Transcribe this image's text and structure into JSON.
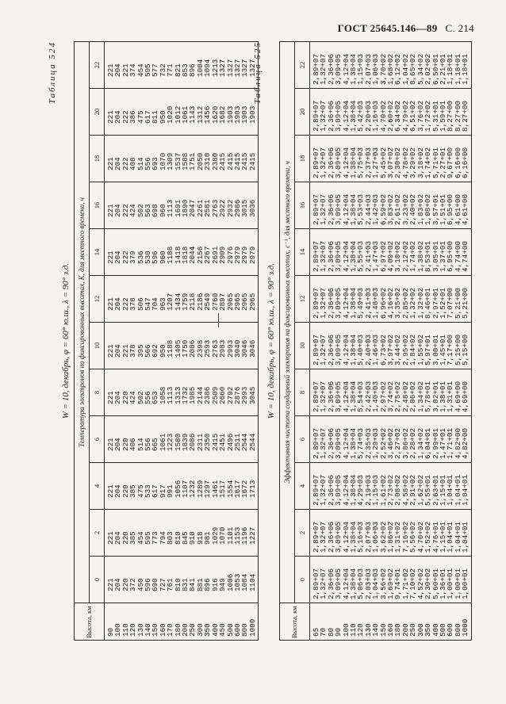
{
  "page_header": {
    "standard": "ГОСТ 25645.146—89",
    "page": "С. 214"
  },
  "table524": {
    "label": "Таблица 524",
    "subtitle": "W = 10, декабрь, φ = 60° ю.ш., λ = 90° з.д.",
    "span_header": "Температура электронов на фиксированных высотах, К, для местного времени, ч",
    "alt_header": "Высота, км",
    "hours": [
      "0",
      "2",
      "4",
      "6",
      "8",
      "10",
      "12",
      "14",
      "16",
      "18",
      "20",
      "22"
    ],
    "altitudes": [
      "90",
      "100",
      "110",
      "120",
      "130",
      "140",
      "150",
      "160",
      "170",
      "180",
      "200",
      "250",
      "300",
      "350",
      "400",
      "450",
      "500",
      "600",
      "800",
      "1000"
    ],
    "columns": [
      [
        "221",
        "204",
        "220",
        "372",
        "450",
        "596",
        "690",
        "727",
        "761",
        "810",
        "831",
        "841",
        "881",
        "896",
        "916",
        "949",
        "1006",
        "1053",
        "1084",
        "1104"
      ],
      [
        "221",
        "204",
        "220",
        "385",
        "454",
        "595",
        "773",
        "794",
        "803",
        "810",
        "845",
        "910",
        "918",
        "981",
        "1029",
        "1070",
        "1101",
        "1153",
        "1196",
        "1227"
      ],
      [
        "221",
        "204",
        "220",
        "385",
        "475",
        "533",
        "617",
        "917",
        "991",
        "1056",
        "1107",
        "1232",
        "1289",
        "1297",
        "1461",
        "1517",
        "1554",
        "1617",
        "1672",
        "1713"
      ],
      [
        "221",
        "204",
        "220",
        "406",
        "514",
        "556",
        "665",
        "1061",
        "1223",
        "1580",
        "1839",
        "2086",
        "2311",
        "2350",
        "2415",
        "2451",
        "2496",
        "2511",
        "2544",
        "2544"
      ],
      [
        "221",
        "204",
        "220",
        "424",
        "502",
        "556",
        "653",
        "1058",
        "1113",
        "1313",
        "1732",
        "1985",
        "2144",
        "2386",
        "2509",
        "2660",
        "2792",
        "2876",
        "2993",
        "3045"
      ],
      [
        "221",
        "204",
        "221",
        "378",
        "395",
        "566",
        "692",
        "950",
        "1188",
        "1405",
        "1750",
        "2086",
        "2398",
        "2593",
        "2763",
        "2983",
        "2993",
        "3040",
        "3046",
        "3046"
      ],
      [
        "221",
        "204",
        "222",
        "378",
        "506",
        "547",
        "704",
        "963",
        "1207",
        "1434",
        "1759",
        "2118",
        "2186",
        "2549",
        "2760",
        "2897",
        "2965",
        "2965",
        "2965",
        "2965"
      ],
      [
        "221",
        "204",
        "222",
        "379",
        "536",
        "530",
        "596",
        "960",
        "1188",
        "1418",
        "1818",
        "2044",
        "2156",
        "2267",
        "2691",
        "2909",
        "2976",
        "2979",
        "2979",
        "2979"
      ],
      [
        "221",
        "204",
        "222",
        "424",
        "502",
        "563",
        "698",
        "960",
        "1113",
        "1691",
        "1890",
        "2047",
        "2261",
        "2581",
        "2763",
        "2922",
        "2932",
        "2986",
        "3015",
        "3036"
      ],
      [
        "221",
        "204",
        "222",
        "408",
        "514",
        "556",
        "693",
        "1070",
        "1309",
        "1537",
        "1588",
        "1751",
        "2050",
        "2310",
        "2380",
        "2415",
        "2415",
        "2415",
        "2415",
        "2415"
      ],
      [
        "221",
        "204",
        "222",
        "386",
        "475",
        "617",
        "811",
        "950",
        "1020",
        "1012",
        "1061",
        "1143",
        "1312",
        "1456",
        "1620",
        "1682",
        "1903",
        "1903",
        "1903",
        "1903"
      ],
      [
        "221",
        "204",
        "221",
        "374",
        "454",
        "595",
        "577",
        "732",
        "771",
        "821",
        "853",
        "896",
        "1004",
        "1094",
        "1213",
        "1327",
        "1327",
        "1327",
        "1327",
        "1327"
      ]
    ]
  },
  "table525": {
    "label": "Таблица 525",
    "subtitle": "W = 10, декабрь, φ = 60° ю.ш., λ = 90° з.д.",
    "span_header": "Эффективная частота соударений электронов на фиксированных высотах, с⁻¹, для местного времени, ч",
    "alt_header": "Высота, км",
    "hours": [
      "0",
      "2",
      "4",
      "6",
      "8",
      "10",
      "12",
      "14",
      "16",
      "18",
      "20",
      "22"
    ],
    "altitudes": [
      "65",
      "70",
      "80",
      "90",
      "100",
      "110",
      "120",
      "130",
      "140",
      "150",
      "160",
      "180",
      "200",
      "250",
      "300",
      "350",
      "400",
      "500",
      "600",
      "800",
      "1000"
    ],
    "columns": [
      [
        "2,89+07",
        "1,32+07",
        "2,36+06",
        "3,09+05",
        "4,12+04",
        "1,38+04",
        "5,06+03",
        "2,03+03",
        "1,04+03",
        "3,56+02",
        "1,69+02",
        "9,74+01",
        "1,71+02",
        "7,10+02",
        "4,52+02",
        "2,30+02",
        "5,60+01",
        "1,36+01",
        "1,00+01",
        "1,00+01",
        "1,00+01"
      ],
      [
        "2,89+07",
        "1,32+07",
        "2,36+06",
        "3,09+05",
        "4,12+04",
        "1,38+04",
        "5,16+03",
        "2,07+03",
        "1,06+03",
        "3,62+02",
        "1,86+02",
        "1,31+02",
        "7,16+02",
        "5,56+02",
        "4,70+02",
        "1,52+02",
        "4,76+01",
        "1,15+01",
        "1,04+01",
        "1,04+01",
        "1,04+01"
      ],
      [
        "2,89+07",
        "1,32+07",
        "2,36+06",
        "3,09+05",
        "4,12+04",
        "1,38+04",
        "4,29+03",
        "2,19+03",
        "1,15+03",
        "1,61+02",
        "2,73+02",
        "2,08+02",
        "4,58+02",
        "2,91+02",
        "1,62+02",
        "5,55+01",
        "2,63+01",
        "1,15+01",
        "1,04+01",
        "1,04+01",
        "1,04+01"
      ],
      [
        "2,89+07",
        "1,32+07",
        "2,36+06",
        "3,09+05",
        "4,12+04",
        "1,38+04",
        "5,74+03",
        "2,35+03",
        "1,29+03",
        "2,52+02",
        "3,46+02",
        "2,27+02",
        "3,86+02",
        "2,28+02",
        "1,34+02",
        "6,04+01",
        "2,99+01",
        "1,47+01",
        "1,71+01",
        "4,82+00",
        "4,82+00"
      ],
      [
        "2,89+07",
        "1,32+07",
        "2,36+06",
        "3,09+05",
        "4,12+04",
        "1,38+04",
        "5,54+03",
        "2,42+03",
        "1,40+03",
        "2,97+02",
        "3,74+02",
        "2,75+02",
        "2,48+02",
        "2,06+02",
        "1,34+02",
        "5,78+01",
        "3,02+01",
        "1,38+01",
        "1,31+01",
        "4,69+00",
        "4,69+00"
      ],
      [
        "2,89+07",
        "1,32+07",
        "2,36+06",
        "3,09+05",
        "4,12+04",
        "1,38+04",
        "5,40+03",
        "2,40+03",
        "1,46+03",
        "6,73+02",
        "3,97+02",
        "3,44+02",
        "2,95+02",
        "1,84+02",
        "1,55+02",
        "5,97+01",
        "3,00+01",
        "1,45+01",
        "7,17+00",
        "5,15+00",
        "5,15+00"
      ],
      [
        "2,89+07",
        "1,32+07",
        "2,36+06",
        "3,09+05",
        "4,12+04",
        "1,38+04",
        "5,49+03",
        "2,41+03",
        "1,48+03",
        "6,96+02",
        "4,16+02",
        "3,35+02",
        "2,85+02",
        "1,32+02",
        "1,32+02",
        "8,46+01",
        "2,97+01",
        "1,52+01",
        "7,07+00",
        "5,21+00",
        "5,21+00"
      ],
      [
        "2,89+07",
        "1,32+07",
        "2,36+06",
        "3,09+05",
        "4,12+04",
        "1,38+04",
        "5,55+03",
        "2,41+03",
        "1,47+03",
        "6,97+02",
        "4,09+02",
        "3,10+02",
        "2,12+02",
        "1,74+02",
        "1,38+02",
        "8,53+01",
        "3,05+01",
        "1,37+01",
        "6,95+00",
        "4,74+00",
        "4,74+00"
      ],
      [
        "2,89+07",
        "1,32+07",
        "2,36+06",
        "3,09+05",
        "4,12+04",
        "1,38+04",
        "5,53+03",
        "2,44+03",
        "1,42+03",
        "6,59+02",
        "3,83+02",
        "2,61+02",
        "3,23+02",
        "2,40+02",
        "1,83+02",
        "1,08+02",
        "3,57+01",
        "1,51+01",
        "6,95+00",
        "4,61+00",
        "4,61+00"
      ],
      [
        "2,89+07",
        "1,32+07",
        "2,36+06",
        "3,09+05",
        "4,12+04",
        "1,38+04",
        "5,75+03",
        "2,37+03",
        "1,27+03",
        "5,45+02",
        "3,07+02",
        "2,30+02",
        "4,78+02",
        "3,29+02",
        "3,18+02",
        "1,74+02",
        "5,71+01",
        "2,27+01",
        "9,67+00",
        "6,16+00",
        "6,16+00"
      ],
      [
        "2,89+07",
        "1,32+07",
        "2,36+06",
        "3,09+05",
        "4,12+04",
        "1,38+04",
        "5,42+03",
        "2,20+03",
        "1,16+03",
        "4,70+02",
        "2,60+02",
        "6,34+02",
        "4,79+02",
        "6,51+02",
        "3,76+02",
        "1,72+02",
        "5,31+01",
        "1,59+01",
        "8,27+00",
        "8,27+00",
        "8,27+00"
      ],
      [
        "2,89+07",
        "1,32+07",
        "2,36+06",
        "3,09+05",
        "4,12+04",
        "1,38+04",
        "1,15+03",
        "2,07+03",
        "1,06+03",
        "3,70+02",
        "1,68+02",
        "6,12+02",
        "1,04+02",
        "8,65+02",
        "5,34+02",
        "2,02+02",
        "6,50+01",
        "2,21+01",
        "1,18+01",
        "1,18+01",
        "1,18+01"
      ]
    ]
  }
}
